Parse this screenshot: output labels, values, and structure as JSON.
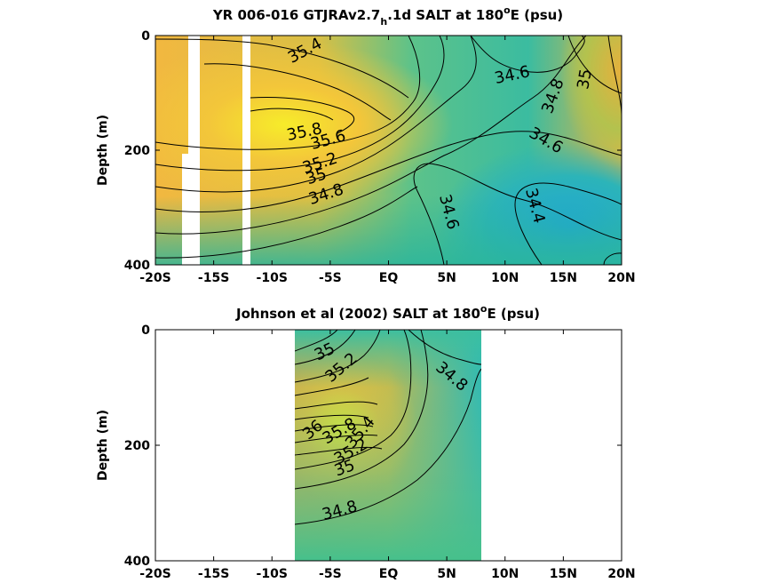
{
  "chart_data": [
    {
      "type": "contour",
      "title": "YR 006-016 GTJRAv2.7",
      "title_sub": "h",
      "title_rest": ".1d SALT at 180",
      "title_sup": "o",
      "title_end": "E (psu)",
      "ylabel": "Depth (m)",
      "xlabel": "",
      "xlim": [
        -20,
        20
      ],
      "ylim": [
        400,
        0
      ],
      "xticks": [
        "-20S",
        "-15S",
        "-10S",
        "-5S",
        "EQ",
        "5N",
        "10N",
        "15N",
        "20N"
      ],
      "yticks": [
        "0",
        "200",
        "400"
      ],
      "contour_labels": [
        {
          "text": "35.4",
          "x": -12.5,
          "depth": 20
        },
        {
          "text": "35.8",
          "x": -7.2,
          "depth": 170
        },
        {
          "text": "35.6",
          "x": -5.1,
          "depth": 180
        },
        {
          "text": "35.2",
          "x": -6.2,
          "depth": 220
        },
        {
          "text": "35",
          "x": -6.5,
          "depth": 245
        },
        {
          "text": "34.8",
          "x": -6.0,
          "depth": 280
        },
        {
          "text": "34.6",
          "x": 11.0,
          "depth": 65
        },
        {
          "text": "34.8",
          "x": 15.3,
          "depth": 105
        },
        {
          "text": "35",
          "x": 17.3,
          "depth": 80
        },
        {
          "text": "34.6",
          "x": 14.7,
          "depth": 200
        },
        {
          "text": "34.6",
          "x": 4.4,
          "depth": 310
        },
        {
          "text": "34.4",
          "x": 12.5,
          "depth": 300
        }
      ]
    },
    {
      "type": "contour",
      "title": "Johnson et al (2002) SALT at 180",
      "title_sup": "o",
      "title_end": "E (psu)",
      "ylabel": "Depth (m)",
      "xlabel": "",
      "xlim": [
        -20,
        20
      ],
      "ylim": [
        400,
        0
      ],
      "data_x_range": [
        -8,
        8
      ],
      "xticks": [
        "-20S",
        "-15S",
        "-10S",
        "-5S",
        "EQ",
        "5N",
        "10N",
        "15N",
        "20N"
      ],
      "yticks": [
        "0",
        "200",
        "400"
      ],
      "contour_labels": [
        {
          "text": "35",
          "x": -6.2,
          "depth": 45
        },
        {
          "text": "35.2",
          "x": -4.1,
          "depth": 70
        },
        {
          "text": "34.8",
          "x": 5.6,
          "depth": 80
        },
        {
          "text": "36",
          "x": -6.9,
          "depth": 180
        },
        {
          "text": "35.8",
          "x": -4.1,
          "depth": 180
        },
        {
          "text": "35.4",
          "x": -2.0,
          "depth": 180
        },
        {
          "text": "35.2",
          "x": -3.5,
          "depth": 215
        },
        {
          "text": "35",
          "x": -6.0,
          "depth": 240
        },
        {
          "text": "34.8",
          "x": -5.9,
          "depth": 310
        }
      ]
    }
  ]
}
